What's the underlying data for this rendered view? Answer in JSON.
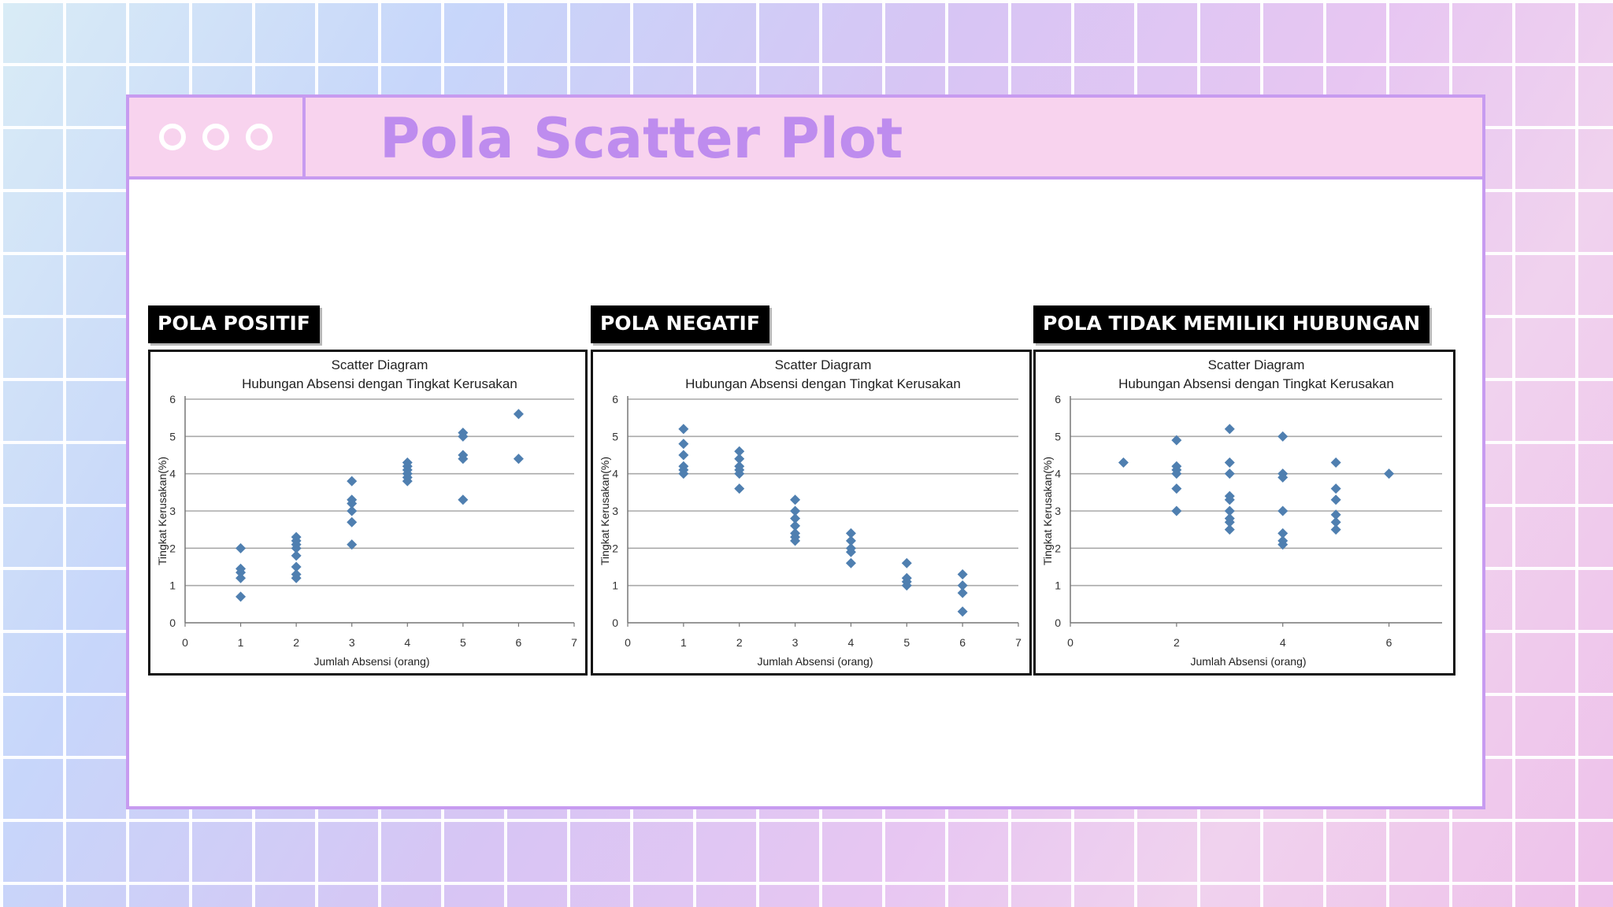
{
  "slide": {
    "title": "Pola Scatter Plot"
  },
  "colors": {
    "accent": "#be8cee",
    "frame": "#c79bf0",
    "titlebar": "#f8d3ee",
    "marker": "#4f7fb0"
  },
  "chart_data": [
    {
      "type": "scatter",
      "panel_label": "POLA POSITIF",
      "title": "Scatter Diagram",
      "subtitle": "Hubungan Absensi dengan Tingkat Kerusakan",
      "xlabel": "Jumlah Absensi (orang)",
      "ylabel": "Tingkat Kerusakan(%)",
      "xlim": [
        0,
        7
      ],
      "ylim": [
        0,
        6
      ],
      "xticks": [
        0,
        1,
        2,
        3,
        4,
        5,
        6,
        7
      ],
      "yticks": [
        0,
        1,
        2,
        3,
        4,
        5,
        6
      ],
      "grid": "horizontal",
      "x": [
        1,
        1,
        1,
        1,
        1,
        2,
        2,
        2,
        2,
        2,
        2,
        2,
        2,
        3,
        3,
        3,
        3,
        3,
        3,
        4,
        4,
        4,
        4,
        4,
        4,
        5,
        5,
        5,
        5,
        5,
        6,
        6
      ],
      "y": [
        2.0,
        1.45,
        1.35,
        1.2,
        0.7,
        2.3,
        2.2,
        2.1,
        2.0,
        1.8,
        1.5,
        1.3,
        1.2,
        3.8,
        3.3,
        3.2,
        3.0,
        2.7,
        2.1,
        4.3,
        4.2,
        4.1,
        4.0,
        3.9,
        3.8,
        5.1,
        5.0,
        4.5,
        4.4,
        3.3,
        5.6,
        4.4
      ]
    },
    {
      "type": "scatter",
      "panel_label": "POLA NEGATIF",
      "title": "Scatter Diagram",
      "subtitle": "Hubungan Absensi dengan Tingkat Kerusakan",
      "xlabel": "Jumlah Absensi (orang)",
      "ylabel": "Tingkat Kerusakan(%)",
      "xlim": [
        0,
        7
      ],
      "ylim": [
        0,
        6
      ],
      "xticks": [
        0,
        1,
        2,
        3,
        4,
        5,
        6,
        7
      ],
      "yticks": [
        0,
        1,
        2,
        3,
        4,
        5,
        6
      ],
      "grid": "horizontal",
      "x": [
        1,
        1,
        1,
        1,
        1,
        1,
        2,
        2,
        2,
        2,
        2,
        2,
        3,
        3,
        3,
        3,
        3,
        3,
        3,
        4,
        4,
        4,
        4,
        4,
        5,
        5,
        5,
        5,
        6,
        6,
        6,
        6
      ],
      "y": [
        5.2,
        4.8,
        4.5,
        4.2,
        4.1,
        4.0,
        4.6,
        4.4,
        4.2,
        4.1,
        4.0,
        3.6,
        3.3,
        3.0,
        2.8,
        2.6,
        2.4,
        2.3,
        2.2,
        2.4,
        2.2,
        2.0,
        1.9,
        1.6,
        1.6,
        1.2,
        1.1,
        1.0,
        1.3,
        1.0,
        0.8,
        0.3
      ]
    },
    {
      "type": "scatter",
      "panel_label": "POLA TIDAK MEMILIKI HUBUNGAN",
      "title": "Scatter Diagram",
      "subtitle": "Hubungan Absensi dengan Tingkat Kerusakan",
      "xlabel": "Jumlah Absensi (orang)",
      "ylabel": "Tingkat Kerusakan(%)",
      "xlim": [
        0,
        7
      ],
      "ylim": [
        0,
        6
      ],
      "xticks": [
        0,
        2,
        4,
        6
      ],
      "yticks": [
        0,
        1,
        2,
        3,
        4,
        5,
        6
      ],
      "grid": "horizontal",
      "x": [
        1,
        2,
        2,
        2,
        2,
        2,
        2,
        3,
        3,
        3,
        3,
        3,
        3,
        3,
        3,
        3,
        4,
        4,
        4,
        4,
        4,
        4,
        4,
        5,
        5,
        5,
        5,
        5,
        5,
        6
      ],
      "y": [
        4.3,
        4.9,
        4.2,
        4.1,
        4.0,
        3.6,
        3.0,
        5.2,
        4.3,
        4.0,
        3.4,
        3.3,
        3.0,
        2.8,
        2.7,
        2.5,
        5.0,
        4.0,
        3.9,
        3.0,
        2.4,
        2.2,
        2.1,
        4.3,
        3.6,
        3.3,
        2.9,
        2.7,
        2.5,
        4.0
      ]
    }
  ]
}
